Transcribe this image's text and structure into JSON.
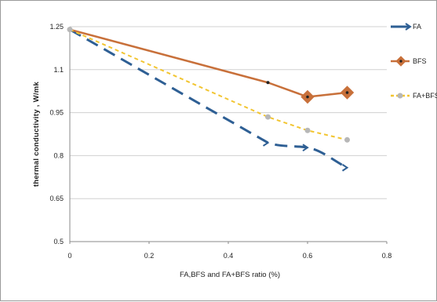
{
  "chart_data": {
    "type": "line",
    "title": "",
    "xlabel": "FA,BFS and FA+BFS ratio (%)",
    "ylabel": "thermal conductivity , W/mk",
    "xlim": [
      0,
      0.8
    ],
    "ylim": [
      0.5,
      1.25
    ],
    "x_ticks": [
      "0",
      "0.2",
      "0.4",
      "0.6",
      "0.8"
    ],
    "y_ticks": [
      "0.5",
      "0.65",
      "0.8",
      "0.95",
      "1.1",
      "1.25"
    ],
    "grid": "horizontal",
    "legend_position": "right",
    "series": [
      {
        "name": "FA",
        "color": "#2e5f94",
        "style": "long-dash",
        "marker": "arrow",
        "points": [
          [
            0,
            1.24
          ],
          [
            0.5,
            0.845
          ],
          [
            0.6,
            0.828
          ],
          [
            0.7,
            0.758
          ]
        ]
      },
      {
        "name": "BFS",
        "color": "#c8703a",
        "style": "solid",
        "marker": "diamond",
        "points": [
          [
            0,
            1.24
          ],
          [
            0.5,
            1.055
          ],
          [
            0.6,
            1.005
          ],
          [
            0.7,
            1.02
          ]
        ]
      },
      {
        "name": "FA+BFS",
        "color": "#f2c531",
        "style": "short-dash",
        "marker": "circle",
        "points": [
          [
            0,
            1.24
          ],
          [
            0.5,
            0.935
          ],
          [
            0.6,
            0.888
          ],
          [
            0.7,
            0.855
          ]
        ]
      }
    ]
  }
}
